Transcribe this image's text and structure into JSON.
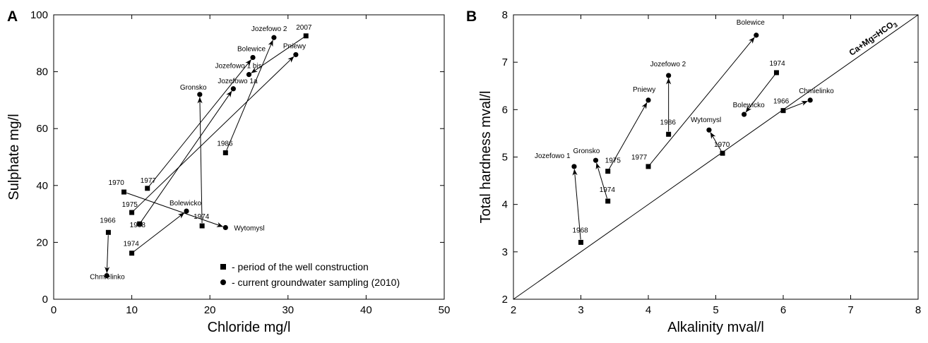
{
  "chart_data": [
    {
      "type": "scatter",
      "panel_letter": "A",
      "xlabel": "Chloride mg/l",
      "ylabel": "Sulphate mg/l",
      "xlim": [
        0,
        50
      ],
      "ylim": [
        0,
        100
      ],
      "xticks": [
        0,
        10,
        20,
        30,
        40,
        50
      ],
      "yticks": [
        0,
        20,
        40,
        60,
        80,
        100
      ],
      "legend": {
        "position": "bottom-right",
        "entries": [
          {
            "marker": "square",
            "label": "- period of the well construction"
          },
          {
            "marker": "circle",
            "label": "- current groundwater sampling (2010)"
          }
        ]
      },
      "wells": [
        {
          "from": {
            "label": "1966",
            "x": 7,
            "y": 23.5
          },
          "to": {
            "label": "Chmielinko",
            "x": 6.8,
            "y": 8.3
          }
        },
        {
          "from": {
            "label": "1974",
            "x": 10,
            "y": 16.2
          },
          "to": {
            "label": "Bolewicko",
            "x": 17,
            "y": 31
          }
        },
        {
          "from": {
            "label": "1970",
            "x": 9,
            "y": 37.7
          },
          "to": {
            "label": "Wytomysl",
            "x": 22,
            "y": 25.2
          }
        },
        {
          "from": {
            "label": "1977",
            "x": 12,
            "y": 39
          },
          "to": {
            "label": "Bolewice",
            "x": 25.5,
            "y": 85
          }
        },
        {
          "from": {
            "label": "1975",
            "x": 10,
            "y": 30.5
          },
          "to": {
            "label": "Pniewy",
            "x": 31,
            "y": 86
          }
        },
        {
          "from": {
            "label": "1968",
            "x": 11,
            "y": 26.5
          },
          "to": {
            "label": "Jozefowo 1a",
            "x": 23,
            "y": 74
          }
        },
        {
          "from": {
            "label": "1974",
            "x": 19,
            "y": 25.8
          },
          "to": {
            "label": "Gronsko",
            "x": 18.7,
            "y": 72
          }
        },
        {
          "from": {
            "label": "1986",
            "x": 22,
            "y": 51.5
          },
          "to": {
            "label": "Jozefowo 2",
            "x": 28.2,
            "y": 92
          }
        },
        {
          "from": {
            "label": "2007",
            "x": 32.3,
            "y": 92.6
          },
          "to": {
            "label": "Jozefowo 1 bis",
            "x": 25,
            "y": 79
          }
        }
      ]
    },
    {
      "type": "scatter",
      "panel_letter": "B",
      "xlabel": "Alkalinity mval/l",
      "ylabel": "Total hardness mval/l",
      "xlim": [
        2,
        8
      ],
      "ylim": [
        2,
        8
      ],
      "xticks": [
        2,
        3,
        4,
        5,
        6,
        7,
        8
      ],
      "yticks": [
        2,
        3,
        4,
        5,
        6,
        7,
        8
      ],
      "reference_line": {
        "label": "Ca+Mg=HCO",
        "label_subscript": "3",
        "from": [
          2,
          2
        ],
        "to": [
          8,
          8
        ]
      },
      "wells": [
        {
          "from": {
            "label": "1968",
            "x": 3,
            "y": 3.2
          },
          "to": {
            "label": "Jozefowo 1",
            "x": 2.9,
            "y": 4.8
          }
        },
        {
          "from": {
            "label": "1974",
            "x": 3.4,
            "y": 4.07
          },
          "to": {
            "label": "Gronsko",
            "x": 3.22,
            "y": 4.93
          }
        },
        {
          "from": {
            "label": "1975",
            "x": 3.4,
            "y": 4.7
          },
          "to": {
            "label": "Pniewy",
            "x": 4,
            "y": 6.2
          }
        },
        {
          "from": {
            "label": "1977",
            "x": 4,
            "y": 4.8
          },
          "to": {
            "label": "Bolewice",
            "x": 5.6,
            "y": 7.57
          }
        },
        {
          "from": {
            "label": "1986",
            "x": 4.3,
            "y": 5.48
          },
          "to": {
            "label": "Jozefowo 2",
            "x": 4.3,
            "y": 6.72
          }
        },
        {
          "from": {
            "label": "1970",
            "x": 5.1,
            "y": 5.08
          },
          "to": {
            "label": "Wytomysl",
            "x": 4.9,
            "y": 5.57
          }
        },
        {
          "from": {
            "label": "1974",
            "x": 5.9,
            "y": 6.78
          },
          "to": {
            "label": "Bolewicko",
            "x": 5.42,
            "y": 5.9
          }
        },
        {
          "from": {
            "label": "1966",
            "x": 6,
            "y": 5.98
          },
          "to": {
            "label": "Chmielinko",
            "x": 6.4,
            "y": 6.2
          }
        }
      ]
    }
  ]
}
